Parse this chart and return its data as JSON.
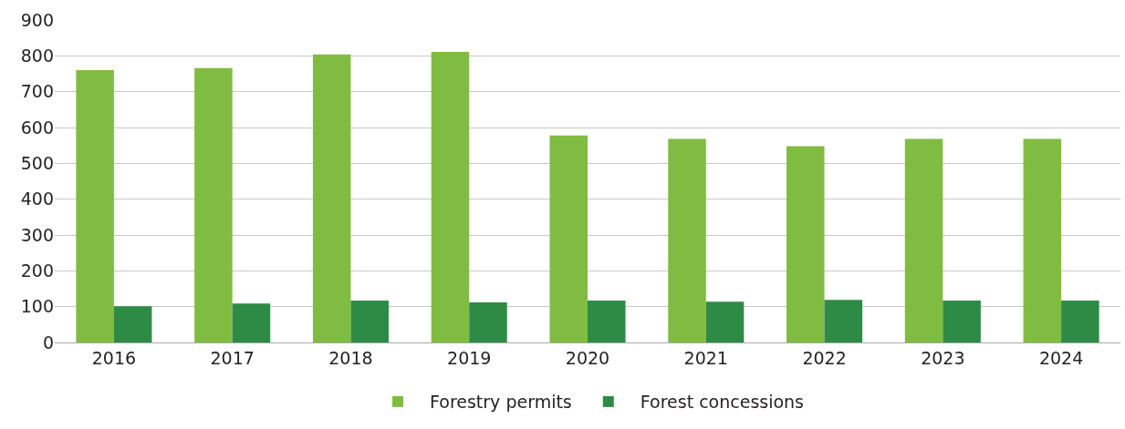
{
  "chart_data": {
    "type": "bar",
    "categories": [
      "2016",
      "2017",
      "2018",
      "2019",
      "2020",
      "2021",
      "2022",
      "2023",
      "2024"
    ],
    "series": [
      {
        "name": "Forestry permits",
        "color": "#80bc41",
        "values": [
          760,
          766,
          804,
          811,
          578,
          568,
          548,
          568,
          568
        ]
      },
      {
        "name": "Forest concessions",
        "color": "#2e8b45",
        "values": [
          101,
          109,
          117,
          112,
          117,
          114,
          119,
          117,
          117
        ]
      }
    ],
    "ylim": [
      0,
      900
    ],
    "yticks": [
      0,
      100,
      200,
      300,
      400,
      500,
      600,
      700,
      800,
      900
    ],
    "grid": "y",
    "legend": "bottom"
  }
}
